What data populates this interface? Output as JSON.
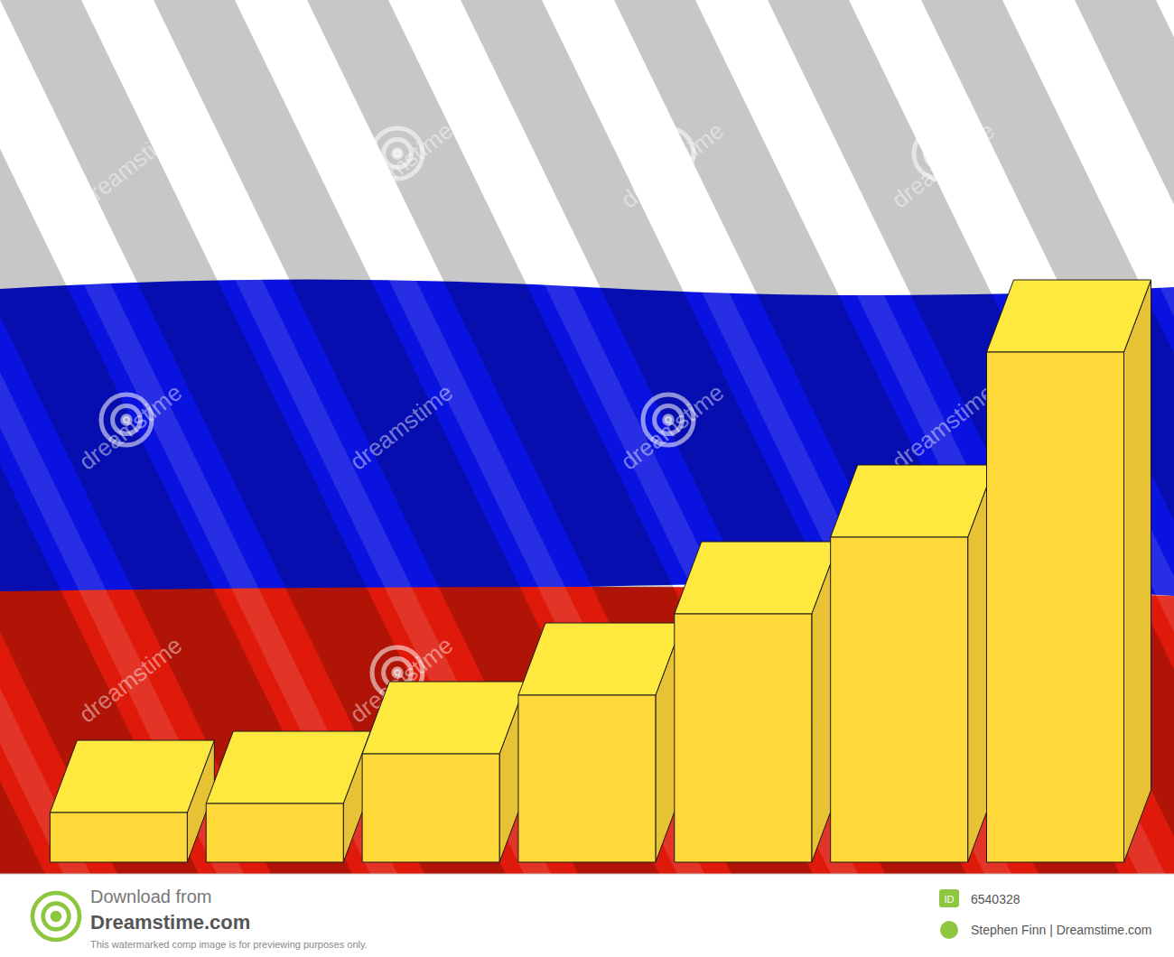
{
  "chart_data": {
    "type": "bar",
    "categories": [
      null,
      null,
      null,
      null,
      null,
      null,
      null
    ],
    "values": [
      55,
      65,
      120,
      185,
      275,
      360,
      565
    ],
    "color": "#ffd83a",
    "ylim": [
      0,
      600
    ],
    "tick_labels": false
  },
  "watermark": "dreamstime",
  "footer": {
    "download": "Download from",
    "site": "Dreamstime.com",
    "note": "This watermarked comp image is for previewing purposes only.",
    "id_label": "ID",
    "id": "6540328",
    "credit": "Stephen Finn | Dreamstime.com"
  }
}
